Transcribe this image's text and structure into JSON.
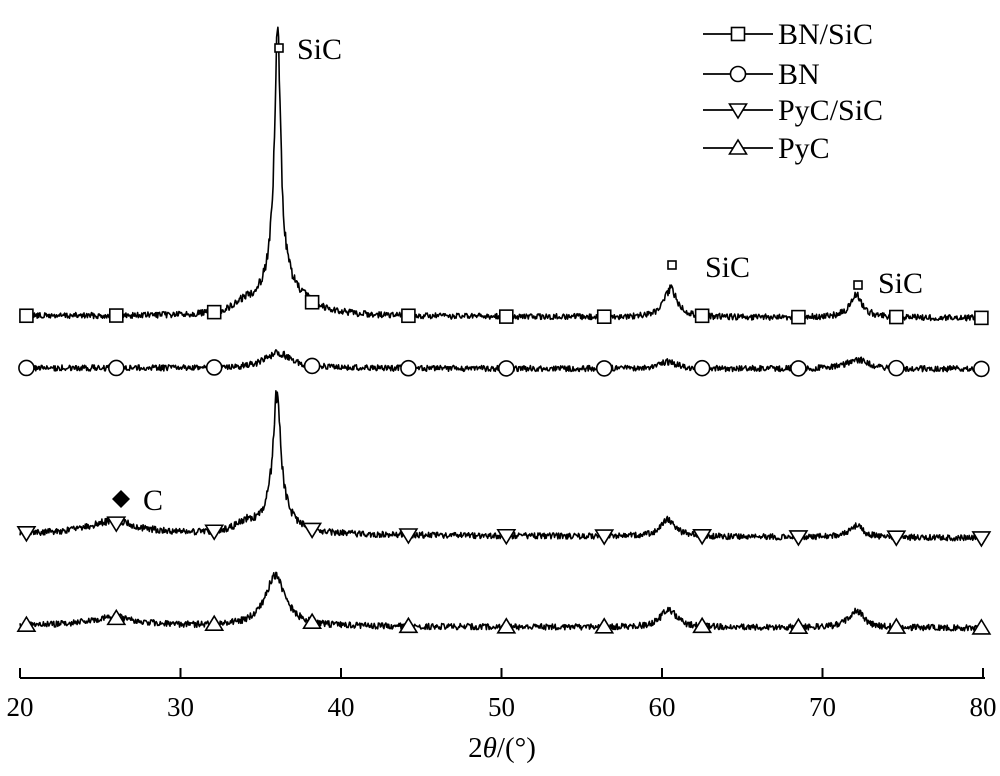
{
  "chart_data": {
    "type": "line",
    "xlabel": {
      "prefix": "2",
      "symbol": "θ",
      "suffix": "/(°)"
    },
    "ylabel": "",
    "xlim": [
      20,
      80
    ],
    "xticks": [
      20,
      30,
      40,
      50,
      60,
      70,
      80
    ],
    "grid": false,
    "y_axis_shown": false,
    "legend_position": "top-right",
    "series": [
      {
        "name": "BN/SiC",
        "marker": "square",
        "offset": 0,
        "peaks": [
          [
            34.0,
            7,
            0.7
          ],
          [
            36.05,
            240,
            0.22
          ],
          [
            36.05,
            45,
            1.1
          ],
          [
            38.0,
            5,
            1.2
          ],
          [
            60.55,
            28,
            0.5
          ],
          [
            72.1,
            22,
            0.5
          ]
        ]
      },
      {
        "name": "BN",
        "marker": "circle",
        "offset": -50,
        "peaks": [
          [
            36.1,
            15,
            1.0
          ],
          [
            60.4,
            7,
            0.6
          ],
          [
            72.2,
            9,
            0.8
          ]
        ]
      },
      {
        "name": "PyC/SiC",
        "marker": "triangle-down",
        "offset": -216,
        "peaks": [
          [
            25.8,
            13,
            1.8
          ],
          [
            34.0,
            8,
            0.7
          ],
          [
            36.0,
            118,
            0.28
          ],
          [
            36.0,
            22,
            1.1
          ],
          [
            60.4,
            17,
            0.55
          ],
          [
            72.1,
            11,
            0.55
          ]
        ]
      },
      {
        "name": "PyC",
        "marker": "triangle-up",
        "offset": -312,
        "peaks": [
          [
            25.8,
            9,
            1.8
          ],
          [
            35.9,
            52,
            0.75
          ],
          [
            60.4,
            19,
            0.55
          ],
          [
            72.1,
            17,
            0.55
          ]
        ]
      }
    ],
    "annotations": [
      {
        "marker": "open-square",
        "label": "SiC",
        "x": 36.05
      },
      {
        "marker": "open-square",
        "label": "SiC",
        "x": 60.6
      },
      {
        "marker": "open-square",
        "label": "SiC",
        "x": 72.2
      },
      {
        "marker": "filled-diamond",
        "label": "C",
        "x": 26.2
      }
    ]
  },
  "colors": {
    "line": "#000000",
    "background": "#ffffff"
  }
}
